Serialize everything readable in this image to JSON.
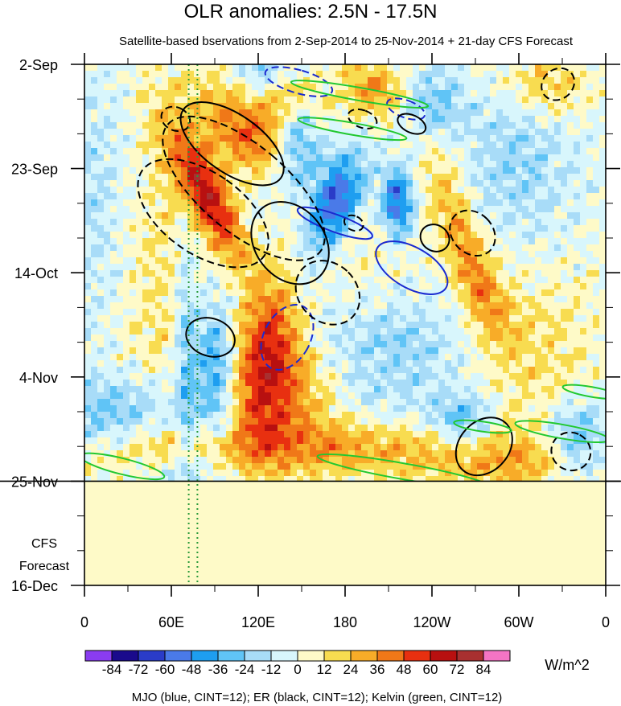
{
  "chart_data": {
    "type": "heatmap",
    "title": "OLR anomalies: 2.5N - 17.5N",
    "subtitle": "Satellite-based bservations from 2-Sep-2014 to 25-Nov-2014 + 21-day CFS Forecast",
    "x": {
      "range_deg_east": [
        0,
        360
      ],
      "ticks": [
        {
          "label": "0",
          "lon": 0
        },
        {
          "label": "60E",
          "lon": 60
        },
        {
          "label": "120E",
          "lon": 120
        },
        {
          "label": "180",
          "lon": 180
        },
        {
          "label": "120W",
          "lon": 240
        },
        {
          "label": "60W",
          "lon": 300
        },
        {
          "label": "0",
          "lon": 360
        }
      ]
    },
    "y": {
      "range_days_since_2_sep": [
        0,
        105
      ],
      "ticks": [
        {
          "label": "2-Sep",
          "day": 0
        },
        {
          "label": "23-Sep",
          "day": 21
        },
        {
          "label": "14-Oct",
          "day": 42
        },
        {
          "label": "4-Nov",
          "day": 63
        },
        {
          "label": "25-Nov",
          "day": 84
        },
        {
          "label": "16-Dec",
          "day": 105
        }
      ],
      "observation_end_day": 84
    },
    "forecast_label_lines": [
      "CFS",
      "Forecast"
    ],
    "colorbar": {
      "unit": "W/m^2",
      "colors": [
        "#8a3cf0",
        "#1a0a8c",
        "#2a3cc8",
        "#4a7ae8",
        "#1e9ef0",
        "#60c4f6",
        "#a8dcf8",
        "#d8f6fc",
        "#fefac8",
        "#f8dc50",
        "#f8ac28",
        "#f07818",
        "#e83010",
        "#b81010",
        "#a83030",
        "#f474c4"
      ],
      "labels": [
        "-84",
        "-72",
        "-60",
        "-48",
        "-36",
        "-24",
        "-12",
        "0",
        "12",
        "24",
        "36",
        "48",
        "60",
        "72",
        "84"
      ],
      "forecast_fill": "#fefac8"
    },
    "reference_lines": [
      {
        "style": "dotted",
        "color": "#2a9a3a",
        "lon": 72
      },
      {
        "style": "dotted",
        "color": "#2a9a3a",
        "lon": 78
      }
    ],
    "contours": [
      {
        "type": "MJO",
        "color": "#1a2ad0",
        "sign": "negative",
        "center_lon": 148,
        "center_day": 3.5,
        "lon_radius": 8,
        "day_radius": 7,
        "tilt_deg": -74
      },
      {
        "type": "MJO",
        "color": "#1a2ad0",
        "sign": "positive",
        "center_lon": 173,
        "center_day": 32,
        "lon_radius": 6,
        "day_radius": 8,
        "tilt_deg": -70
      },
      {
        "type": "MJO",
        "color": "#1a2ad0",
        "sign": "positive",
        "center_lon": 226,
        "center_day": 41,
        "lon_radius": 14,
        "day_radius": 8,
        "tilt_deg": -60
      },
      {
        "type": "MJO",
        "color": "#1a2ad0",
        "sign": "negative",
        "center_lon": 222,
        "center_day": 9,
        "lon_radius": 6,
        "day_radius": 4,
        "tilt_deg": -70
      },
      {
        "type": "MJO",
        "color": "#1a2ad0",
        "sign": "negative",
        "center_lon": 140,
        "center_day": 55,
        "lon_radius": 16,
        "day_radius": 7,
        "tilt_deg": 28
      },
      {
        "type": "ER",
        "color": "#000000",
        "sign": "positive",
        "center_lon": 102,
        "center_day": 16,
        "lon_radius": 20,
        "day_radius": 12,
        "tilt_deg": -55
      },
      {
        "type": "ER",
        "color": "#000000",
        "sign": "negative",
        "center_lon": 82,
        "center_day": 30,
        "lon_radius": 28,
        "day_radius": 15,
        "tilt_deg": -55
      },
      {
        "type": "ER",
        "color": "#000000",
        "sign": "positive",
        "center_lon": 142,
        "center_day": 36,
        "lon_radius": 24,
        "day_radius": 9,
        "tilt_deg": -38
      },
      {
        "type": "ER",
        "color": "#000000",
        "sign": "negative",
        "center_lon": 110,
        "center_day": 25,
        "lon_radius": 30,
        "day_radius": 20,
        "tilt_deg": -50
      },
      {
        "type": "ER",
        "color": "#000000",
        "sign": "positive",
        "center_lon": 87,
        "center_day": 55,
        "lon_radius": 13,
        "day_radius": 5,
        "tilt_deg": -72
      },
      {
        "type": "ER",
        "color": "#000000",
        "sign": "negative",
        "center_lon": 168,
        "center_day": 46,
        "lon_radius": 20,
        "day_radius": 7,
        "tilt_deg": -45
      },
      {
        "type": "ER",
        "color": "#000000",
        "sign": "positive",
        "center_lon": 242,
        "center_day": 35,
        "lon_radius": 9,
        "day_radius": 3,
        "tilt_deg": -60
      },
      {
        "type": "ER",
        "color": "#000000",
        "sign": "negative",
        "center_lon": 268,
        "center_day": 34,
        "lon_radius": 14,
        "day_radius": 5,
        "tilt_deg": -45
      },
      {
        "type": "ER",
        "color": "#000000",
        "sign": "positive",
        "center_lon": 276,
        "center_day": 77,
        "lon_radius": 22,
        "day_radius": 5,
        "tilt_deg": -48
      },
      {
        "type": "ER",
        "color": "#000000",
        "sign": "negative",
        "center_lon": 336,
        "center_day": 78,
        "lon_radius": 13,
        "day_radius": 4,
        "tilt_deg": -62
      },
      {
        "type": "ER",
        "color": "#000000",
        "sign": "negative",
        "center_lon": 327,
        "center_day": 4,
        "lon_radius": 12,
        "day_radius": 3,
        "tilt_deg": -40
      },
      {
        "type": "ER",
        "color": "#000000",
        "sign": "negative",
        "center_lon": 63,
        "center_day": 11,
        "lon_radius": 8,
        "day_radius": 3,
        "tilt_deg": -65
      },
      {
        "type": "ER",
        "color": "#000000",
        "sign": "positive",
        "center_lon": 226,
        "center_day": 12,
        "lon_radius": 6,
        "day_radius": 3,
        "tilt_deg": -65
      },
      {
        "type": "ER",
        "color": "#000000",
        "sign": "negative",
        "center_lon": 192,
        "center_day": 11,
        "lon_radius": 6,
        "day_radius": 3,
        "tilt_deg": -70
      },
      {
        "type": "ER",
        "color": "#000000",
        "sign": "negative",
        "center_lon": 186,
        "center_day": 32,
        "lon_radius": 5,
        "day_radius": 2,
        "tilt_deg": -65
      },
      {
        "type": "Kelvin",
        "color": "#22c830",
        "sign": "positive",
        "center_lon": 190,
        "center_day": 6,
        "lon_radius": 48,
        "day_radius": 1.3,
        "tilt_deg": 10
      },
      {
        "type": "Kelvin",
        "color": "#22c830",
        "sign": "positive",
        "center_lon": 185,
        "center_day": 13,
        "lon_radius": 38,
        "day_radius": 1.2,
        "tilt_deg": 10
      },
      {
        "type": "Kelvin",
        "color": "#22c830",
        "sign": "positive",
        "center_lon": 220,
        "center_day": 82,
        "lon_radius": 60,
        "day_radius": 1.6,
        "tilt_deg": 10
      },
      {
        "type": "Kelvin",
        "color": "#22c830",
        "sign": "positive",
        "center_lon": 26,
        "center_day": 81,
        "lon_radius": 30,
        "day_radius": 1.6,
        "tilt_deg": 14
      },
      {
        "type": "Kelvin",
        "color": "#22c830",
        "sign": "positive",
        "center_lon": 330,
        "center_day": 74,
        "lon_radius": 33,
        "day_radius": 1.4,
        "tilt_deg": 10
      },
      {
        "type": "Kelvin",
        "color": "#22c830",
        "sign": "positive",
        "center_lon": 350,
        "center_day": 66,
        "lon_radius": 20,
        "day_radius": 1.0,
        "tilt_deg": 10
      },
      {
        "type": "Kelvin",
        "color": "#22c830",
        "sign": "positive",
        "center_lon": 275,
        "center_day": 73,
        "lon_radius": 20,
        "day_radius": 1.0,
        "tilt_deg": 8
      }
    ],
    "legend_note": "MJO (blue, CINT=12); ER (black, CINT=12); Kelvin (green, CINT=12)"
  }
}
